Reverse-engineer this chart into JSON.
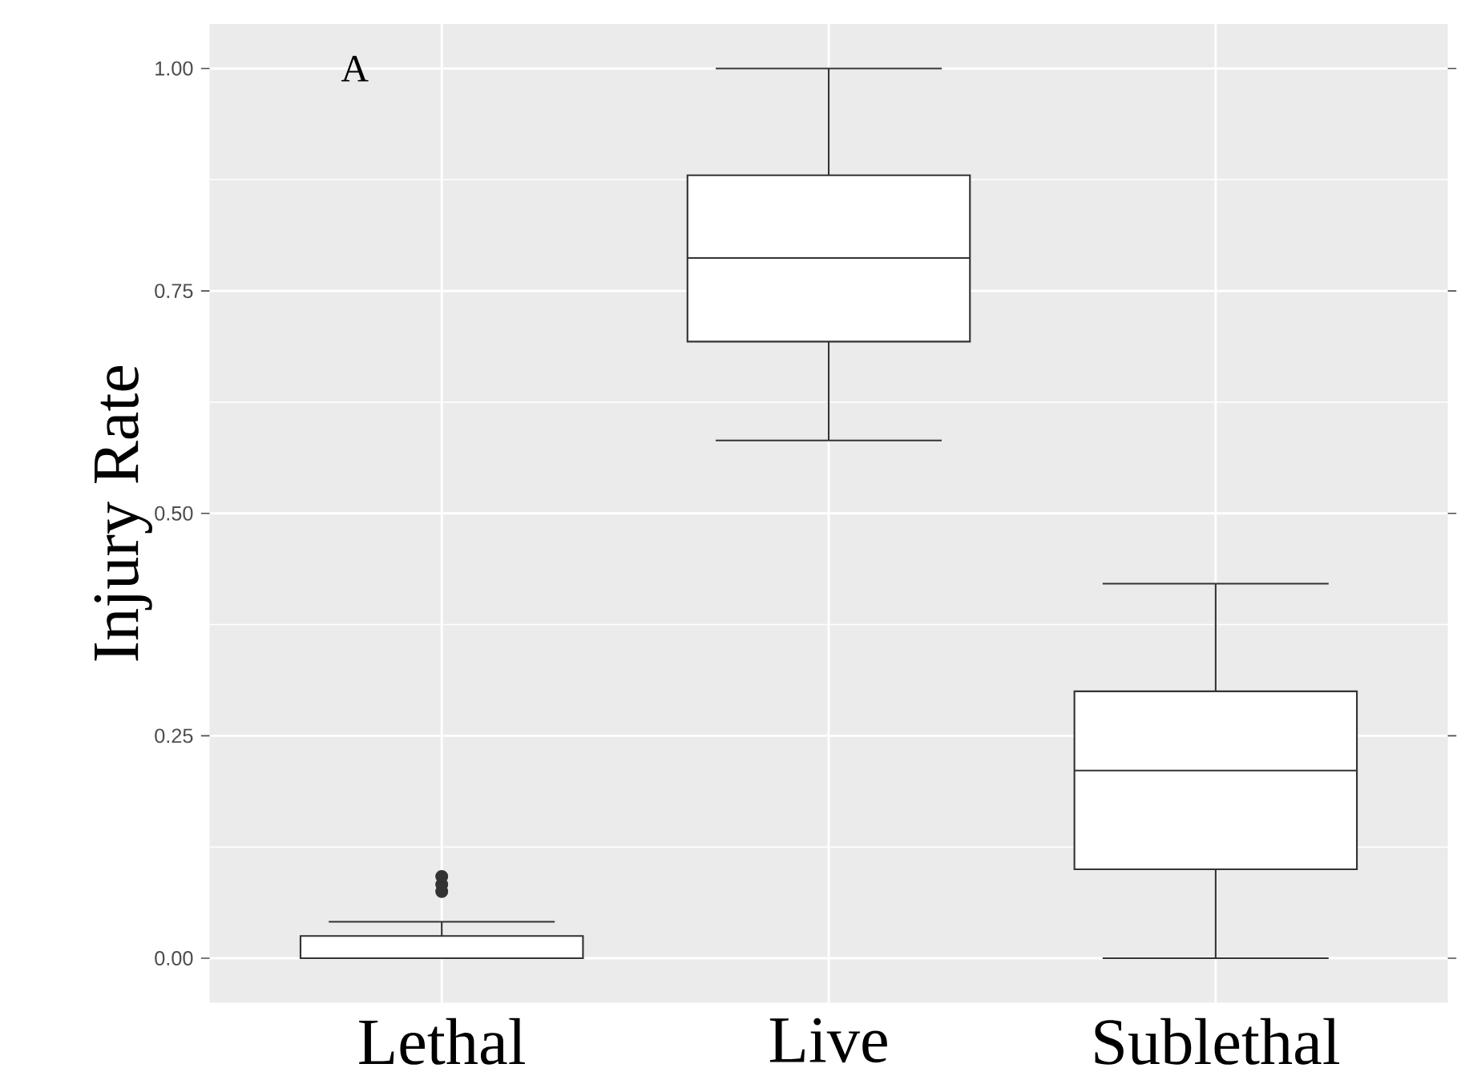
{
  "chart_data": {
    "type": "box",
    "ylabel": "Injury Rate",
    "annotations": [
      "A"
    ],
    "categories": [
      "Lethal",
      "Live",
      "Sublethal"
    ],
    "boxes": [
      {
        "low": 0,
        "q1": 0,
        "median": 0,
        "q3": 0.025,
        "high": 0.041,
        "outliers": [
          0.075,
          0.083,
          0.092
        ]
      },
      {
        "low": 0.582,
        "q1": 0.693,
        "median": 0.787,
        "q3": 0.88,
        "high": 1.0
      },
      {
        "low": 0,
        "q1": 0.1,
        "median": 0.211,
        "q3": 0.3,
        "high": 0.421
      }
    ],
    "color": "#333333",
    "ylim": [
      -0.05,
      1.05
    ],
    "yticks": [
      {
        "value": 0,
        "label": "0.00"
      },
      {
        "value": 0.25,
        "label": "0.25"
      },
      {
        "value": 0.5,
        "label": "0.50"
      },
      {
        "value": 0.75,
        "label": "0.75"
      },
      {
        "value": 1.0,
        "label": "1.00"
      }
    ],
    "grid": true
  }
}
